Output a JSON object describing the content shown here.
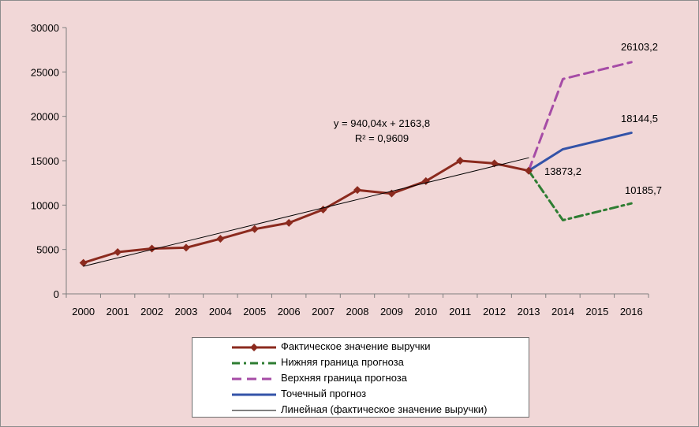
{
  "chart_data": {
    "type": "line",
    "title": "",
    "xlabel": "",
    "ylabel": "",
    "x": [
      "2000",
      "2001",
      "2002",
      "2003",
      "2004",
      "2005",
      "2006",
      "2007",
      "2008",
      "2009",
      "2010",
      "2011",
      "2012",
      "2013",
      "2014",
      "2015",
      "2016"
    ],
    "ylim": [
      0,
      30000
    ],
    "yticks": [
      0,
      5000,
      10000,
      15000,
      20000,
      25000,
      30000
    ],
    "series": [
      {
        "name": "Фактическое значение выручки",
        "color": "#8b2a1e",
        "style": "solid-marker",
        "values": [
          3500,
          4700,
          5100,
          5200,
          6200,
          7300,
          8000,
          9500,
          11700,
          11300,
          12700,
          15000,
          14700,
          13873.2,
          null,
          null,
          null
        ]
      },
      {
        "name": "Нижняя граница прогноза",
        "color": "#2e7d32",
        "style": "dash-dot",
        "values": [
          null,
          null,
          null,
          null,
          null,
          null,
          null,
          null,
          null,
          null,
          null,
          null,
          null,
          13873.2,
          8300,
          null,
          10185.7
        ]
      },
      {
        "name": "Верхняя граница прогноза",
        "color": "#a64ca6",
        "style": "dashed",
        "values": [
          null,
          null,
          null,
          null,
          null,
          null,
          null,
          null,
          null,
          null,
          null,
          null,
          null,
          13873.2,
          24200,
          null,
          26103.2
        ]
      },
      {
        "name": "Точечный прогноз",
        "color": "#3353a8",
        "style": "solid",
        "values": [
          null,
          null,
          null,
          null,
          null,
          null,
          null,
          null,
          null,
          null,
          null,
          null,
          null,
          13873.2,
          16300,
          null,
          18144.5
        ]
      },
      {
        "name": "Линейная (фактическое значение выручки)",
        "color": "#000000",
        "style": "thin",
        "values": [
          3103.8,
          4043.9,
          4983.9,
          5924.0,
          6864.0,
          7804.0,
          8744.1,
          9684.1,
          10624.2,
          11564.2,
          12504.2,
          13444.3,
          14384.3,
          15324.4,
          null,
          null,
          null
        ]
      }
    ],
    "annotations": {
      "equation": "y = 940,04x + 2163,8",
      "r2": "R² = 0,9609",
      "label_2013": "13873,2",
      "label_upper_2016": "26103,2",
      "label_point_2016": "18144,5",
      "label_lower_2016": "10185,7"
    },
    "legend_position": "bottom",
    "grid": false
  }
}
